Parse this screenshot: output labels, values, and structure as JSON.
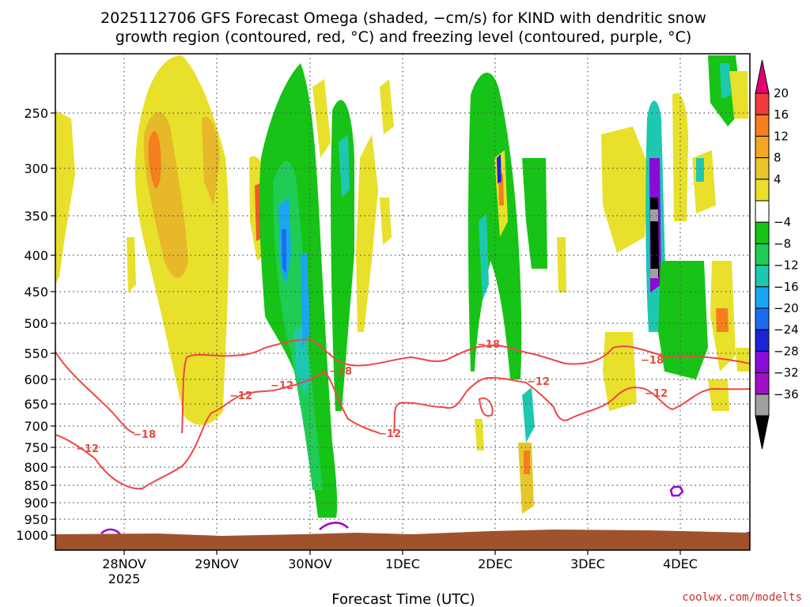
{
  "chart_data": {
    "type": "heatmap",
    "title_lines": [
      "2025112706 GFS Forecast Omega (shaded, −cm/s) for KIND with dendritic snow",
      "growth region (contoured, red, °C) and freezing level (contoured, purple, °C)"
    ],
    "xlabel": "Forecast Time (UTC)",
    "ylabel": "",
    "x_ticks": [
      {
        "label": "28NOV",
        "sub": "2025"
      },
      {
        "label": "29NOV",
        "sub": ""
      },
      {
        "label": "30NOV",
        "sub": ""
      },
      {
        "label": "1DEC",
        "sub": ""
      },
      {
        "label": "2DEC",
        "sub": ""
      },
      {
        "label": "3DEC",
        "sub": ""
      },
      {
        "label": "4DEC",
        "sub": ""
      }
    ],
    "y_ticks": [
      "250",
      "300",
      "350",
      "400",
      "450",
      "500",
      "550",
      "600",
      "650",
      "700",
      "750",
      "800",
      "850",
      "900",
      "950",
      "1000"
    ],
    "colorbar_labels": [
      "20",
      "16",
      "12",
      "8",
      "4",
      "−4",
      "−8",
      "−12",
      "−16",
      "−20",
      "−24",
      "−28",
      "−32",
      "−36"
    ],
    "colorbar_colors": [
      "#e40071",
      "#f03c3c",
      "#f57f1e",
      "#f5a623",
      "#e6c62a",
      "#e8e02a",
      "#ffffff",
      "#16c316",
      "#1fcc55",
      "#1ec8b0",
      "#1aa6f0",
      "#1d6cf0",
      "#1a24d8",
      "#8a0ad8",
      "#a010c8",
      "#a0a0a0",
      "#000000"
    ],
    "contour_labels": [
      "−12",
      "−18",
      "−12",
      "−12",
      "−18",
      "−12",
      "−18",
      "−12",
      "−18",
      "−12"
    ],
    "contour_color_dgz": "#f04646",
    "contour_color_freezing": "#9a00c8",
    "ground_color": "#a0522d",
    "grid": true
  },
  "credit": "coolwx.com/modelts"
}
